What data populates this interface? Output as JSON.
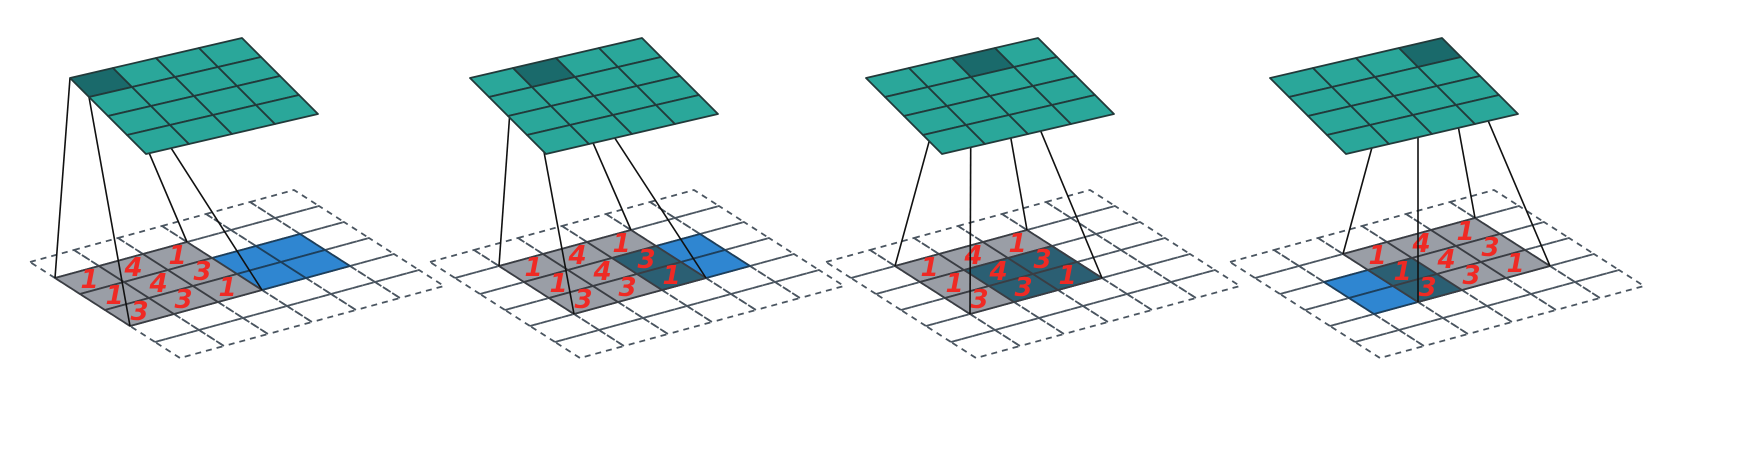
{
  "colors": {
    "output_cell": "#2aa79a",
    "output_active": "#1a6a6b",
    "output_grid_line": "#223a3a",
    "kernel_cell": "#9a9ea6",
    "kernel_line": "#3a3d43",
    "kernel_overlap": "#2b5f73",
    "input_cell": "#2f86d1",
    "input_grid_dash": "#4a5560",
    "projection_line": "#111111",
    "kernel_digit": "#ef2a24"
  },
  "output_grid": {
    "rows": 4,
    "cols": 4
  },
  "input_grid": {
    "rows": 6,
    "cols": 6,
    "style": "dashed"
  },
  "kernel": {
    "size": 3,
    "digits": [
      [
        "1",
        "4",
        "1"
      ],
      [
        "1",
        "4",
        "3"
      ],
      [
        "3",
        "3",
        "1"
      ]
    ]
  },
  "panels": [
    {
      "step": 1,
      "output_active_cell": [
        0,
        0
      ],
      "input_block": [
        2,
        3
      ]
    },
    {
      "step": 2,
      "output_active_cell": [
        0,
        1
      ],
      "input_block": [
        2,
        3
      ]
    },
    {
      "step": 3,
      "output_active_cell": [
        0,
        2
      ],
      "input_block": [
        2,
        2
      ]
    },
    {
      "step": 4,
      "output_active_cell": [
        0,
        3
      ],
      "input_block": [
        2,
        1
      ]
    }
  ]
}
